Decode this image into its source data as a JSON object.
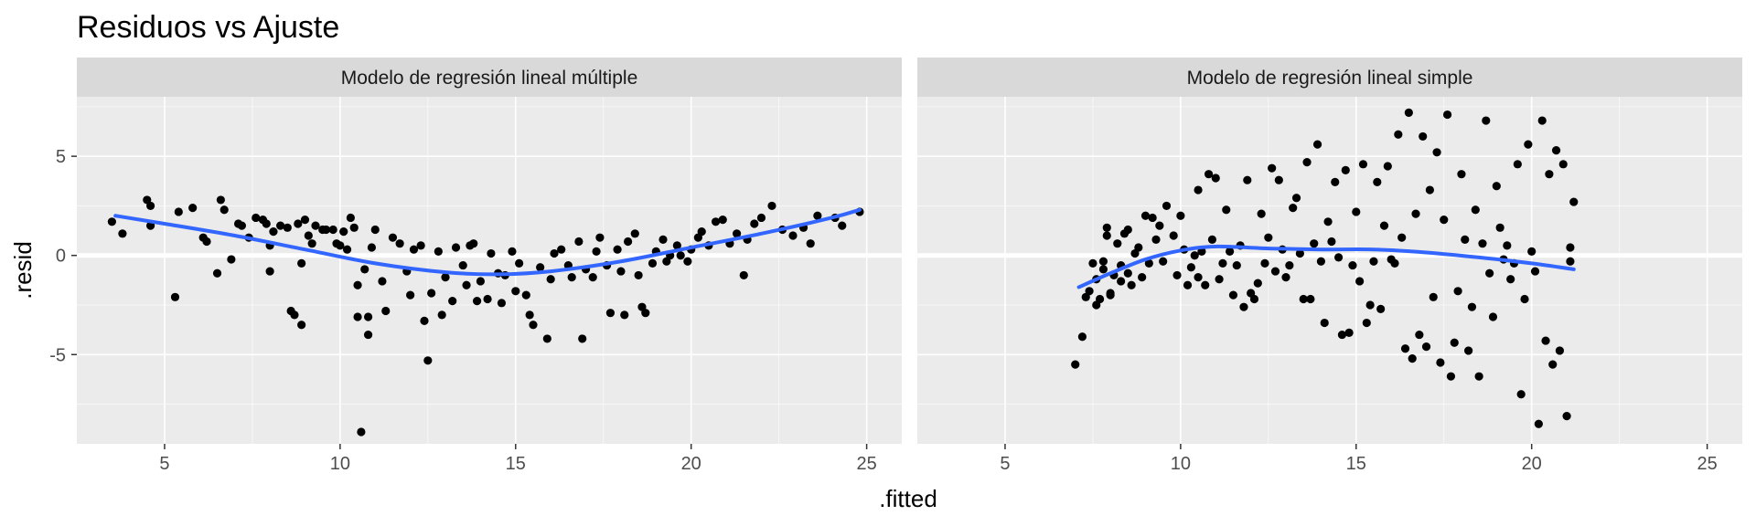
{
  "chart_data": {
    "type": "scatter",
    "title": "Residuos vs Ajuste",
    "xlabel": ".fitted",
    "ylabel": ".resid",
    "xlim": [
      2.5,
      26
    ],
    "ylim": [
      -9.5,
      8
    ],
    "xticks": [
      5,
      10,
      15,
      20,
      25
    ],
    "yticks": [
      5,
      0,
      -5
    ],
    "grid": true,
    "smooth_color": "#3366FF",
    "panels": [
      {
        "name": "Modelo de regresión lineal múltiple",
        "smooth": [
          [
            3.6,
            2.0
          ],
          [
            5,
            1.6
          ],
          [
            7,
            1.0
          ],
          [
            9,
            0.3
          ],
          [
            11,
            -0.4
          ],
          [
            13,
            -0.85
          ],
          [
            14.5,
            -0.95
          ],
          [
            16,
            -0.8
          ],
          [
            18,
            -0.3
          ],
          [
            20,
            0.4
          ],
          [
            22,
            1.1
          ],
          [
            24,
            1.9
          ],
          [
            24.8,
            2.3
          ]
        ],
        "points": [
          [
            3.5,
            1.7
          ],
          [
            3.8,
            1.1
          ],
          [
            4.5,
            2.8
          ],
          [
            4.6,
            2.5
          ],
          [
            4.6,
            1.5
          ],
          [
            5.3,
            -2.1
          ],
          [
            5.4,
            2.2
          ],
          [
            5.8,
            2.4
          ],
          [
            6.1,
            0.9
          ],
          [
            6.2,
            0.7
          ],
          [
            6.5,
            -0.9
          ],
          [
            6.6,
            2.8
          ],
          [
            6.7,
            2.3
          ],
          [
            6.9,
            -0.2
          ],
          [
            7.1,
            1.6
          ],
          [
            7.2,
            1.5
          ],
          [
            7.4,
            0.9
          ],
          [
            7.6,
            1.9
          ],
          [
            7.8,
            1.8
          ],
          [
            7.9,
            1.6
          ],
          [
            8.0,
            0.5
          ],
          [
            8.0,
            -0.8
          ],
          [
            8.1,
            1.2
          ],
          [
            8.3,
            1.5
          ],
          [
            8.5,
            1.4
          ],
          [
            8.6,
            -2.8
          ],
          [
            8.7,
            -3.0
          ],
          [
            8.8,
            1.6
          ],
          [
            8.9,
            -3.5
          ],
          [
            8.9,
            -0.4
          ],
          [
            9.0,
            1.8
          ],
          [
            9.1,
            1.0
          ],
          [
            9.2,
            0.6
          ],
          [
            9.3,
            1.5
          ],
          [
            9.5,
            1.3
          ],
          [
            9.6,
            1.3
          ],
          [
            9.8,
            1.3
          ],
          [
            9.9,
            0.6
          ],
          [
            10.0,
            0.5
          ],
          [
            10.1,
            1.2
          ],
          [
            10.2,
            0.3
          ],
          [
            10.3,
            1.9
          ],
          [
            10.4,
            1.4
          ],
          [
            10.5,
            -1.5
          ],
          [
            10.5,
            -3.1
          ],
          [
            10.6,
            -8.9
          ],
          [
            10.7,
            -0.7
          ],
          [
            10.8,
            -4.0
          ],
          [
            10.8,
            -3.1
          ],
          [
            10.9,
            0.4
          ],
          [
            11.0,
            1.3
          ],
          [
            11.2,
            -1.3
          ],
          [
            11.3,
            -2.8
          ],
          [
            11.5,
            0.9
          ],
          [
            11.7,
            0.6
          ],
          [
            11.9,
            -0.8
          ],
          [
            12.0,
            -2.0
          ],
          [
            12.1,
            0.3
          ],
          [
            12.3,
            0.5
          ],
          [
            12.4,
            -3.3
          ],
          [
            12.5,
            -5.3
          ],
          [
            12.6,
            -1.9
          ],
          [
            12.8,
            0.2
          ],
          [
            12.9,
            -3.0
          ],
          [
            13.0,
            -1.1
          ],
          [
            13.2,
            -2.3
          ],
          [
            13.3,
            0.4
          ],
          [
            13.5,
            -0.5
          ],
          [
            13.6,
            -1.5
          ],
          [
            13.7,
            0.5
          ],
          [
            13.8,
            0.6
          ],
          [
            13.9,
            -2.3
          ],
          [
            14.0,
            -1.3
          ],
          [
            14.2,
            -2.2
          ],
          [
            14.3,
            0.1
          ],
          [
            14.5,
            -0.9
          ],
          [
            14.6,
            -2.4
          ],
          [
            14.7,
            -1.0
          ],
          [
            14.9,
            0.2
          ],
          [
            15.0,
            -1.8
          ],
          [
            15.1,
            -0.4
          ],
          [
            15.3,
            -2.0
          ],
          [
            15.4,
            -3.0
          ],
          [
            15.5,
            -3.5
          ],
          [
            15.7,
            -0.6
          ],
          [
            15.9,
            -4.2
          ],
          [
            16.0,
            -1.2
          ],
          [
            16.1,
            0.1
          ],
          [
            16.3,
            0.3
          ],
          [
            16.5,
            -0.5
          ],
          [
            16.6,
            -1.1
          ],
          [
            16.8,
            0.7
          ],
          [
            16.9,
            -4.2
          ],
          [
            17.0,
            -0.7
          ],
          [
            17.2,
            -1.1
          ],
          [
            17.3,
            0.2
          ],
          [
            17.4,
            0.9
          ],
          [
            17.6,
            -0.5
          ],
          [
            17.7,
            -2.9
          ],
          [
            17.9,
            0.3
          ],
          [
            18.0,
            -0.8
          ],
          [
            18.1,
            -3.0
          ],
          [
            18.2,
            0.7
          ],
          [
            18.4,
            1.1
          ],
          [
            18.5,
            -1.0
          ],
          [
            18.6,
            -2.6
          ],
          [
            18.7,
            -2.9
          ],
          [
            18.9,
            -0.4
          ],
          [
            19.0,
            0.2
          ],
          [
            19.2,
            0.8
          ],
          [
            19.3,
            -0.3
          ],
          [
            19.4,
            0.0
          ],
          [
            19.6,
            0.5
          ],
          [
            19.7,
            0.0
          ],
          [
            19.9,
            -0.3
          ],
          [
            20.0,
            0.3
          ],
          [
            20.2,
            0.9
          ],
          [
            20.3,
            1.2
          ],
          [
            20.5,
            0.5
          ],
          [
            20.7,
            1.7
          ],
          [
            20.9,
            1.8
          ],
          [
            21.1,
            0.6
          ],
          [
            21.3,
            1.1
          ],
          [
            21.5,
            -1.0
          ],
          [
            21.6,
            0.8
          ],
          [
            21.8,
            1.6
          ],
          [
            22.0,
            1.9
          ],
          [
            22.3,
            2.5
          ],
          [
            22.6,
            1.3
          ],
          [
            22.9,
            1.0
          ],
          [
            23.2,
            1.4
          ],
          [
            23.4,
            0.6
          ],
          [
            23.6,
            2.0
          ],
          [
            24.1,
            1.9
          ],
          [
            24.3,
            1.5
          ],
          [
            24.8,
            2.2
          ]
        ]
      },
      {
        "name": "Modelo de regresión lineal simple",
        "smooth": [
          [
            7.1,
            -1.6
          ],
          [
            8,
            -0.9
          ],
          [
            9,
            -0.2
          ],
          [
            10,
            0.25
          ],
          [
            11,
            0.45
          ],
          [
            12.5,
            0.35
          ],
          [
            14,
            0.3
          ],
          [
            15.5,
            0.3
          ],
          [
            17,
            0.15
          ],
          [
            18.5,
            -0.1
          ],
          [
            20,
            -0.4
          ],
          [
            21.2,
            -0.7
          ]
        ],
        "points": [
          [
            7.0,
            -5.5
          ],
          [
            7.2,
            -4.1
          ],
          [
            7.3,
            -2.1
          ],
          [
            7.4,
            -1.8
          ],
          [
            7.5,
            -0.4
          ],
          [
            7.6,
            -2.5
          ],
          [
            7.6,
            -1.2
          ],
          [
            7.7,
            -2.2
          ],
          [
            7.8,
            -0.7
          ],
          [
            7.8,
            -0.3
          ],
          [
            7.9,
            1.0
          ],
          [
            7.9,
            1.4
          ],
          [
            8.0,
            -1.9
          ],
          [
            8.0,
            -2.0
          ],
          [
            8.1,
            -1.0
          ],
          [
            8.2,
            0.6
          ],
          [
            8.3,
            -1.3
          ],
          [
            8.3,
            -0.5
          ],
          [
            8.4,
            1.1
          ],
          [
            8.5,
            1.3
          ],
          [
            8.5,
            -0.9
          ],
          [
            8.6,
            -1.5
          ],
          [
            8.7,
            0.1
          ],
          [
            8.8,
            0.4
          ],
          [
            8.9,
            -1.1
          ],
          [
            9.0,
            2.0
          ],
          [
            9.1,
            -0.4
          ],
          [
            9.2,
            1.9
          ],
          [
            9.3,
            0.8
          ],
          [
            9.4,
            1.5
          ],
          [
            9.5,
            -0.3
          ],
          [
            9.6,
            2.5
          ],
          [
            9.8,
            1.0
          ],
          [
            9.9,
            -1.0
          ],
          [
            10.0,
            2.0
          ],
          [
            10.1,
            0.3
          ],
          [
            10.2,
            -1.5
          ],
          [
            10.3,
            -0.6
          ],
          [
            10.4,
            0.0
          ],
          [
            10.5,
            3.3
          ],
          [
            10.5,
            -1.1
          ],
          [
            10.6,
            0.2
          ],
          [
            10.7,
            -1.5
          ],
          [
            10.8,
            4.1
          ],
          [
            10.9,
            0.8
          ],
          [
            11.0,
            3.9
          ],
          [
            11.1,
            -1.2
          ],
          [
            11.2,
            -0.4
          ],
          [
            11.3,
            2.3
          ],
          [
            11.4,
            0.2
          ],
          [
            11.5,
            -2.0
          ],
          [
            11.6,
            -0.5
          ],
          [
            11.7,
            0.5
          ],
          [
            11.8,
            -2.6
          ],
          [
            11.9,
            3.8
          ],
          [
            12.0,
            -1.9
          ],
          [
            12.1,
            -2.2
          ],
          [
            12.2,
            -1.4
          ],
          [
            12.3,
            2.1
          ],
          [
            12.4,
            -0.4
          ],
          [
            12.5,
            0.9
          ],
          [
            12.6,
            4.4
          ],
          [
            12.7,
            -0.8
          ],
          [
            12.8,
            3.8
          ],
          [
            12.9,
            0.3
          ],
          [
            13.0,
            -1.1
          ],
          [
            13.1,
            -0.5
          ],
          [
            13.2,
            2.4
          ],
          [
            13.3,
            2.9
          ],
          [
            13.4,
            0.1
          ],
          [
            13.5,
            -2.2
          ],
          [
            13.6,
            4.7
          ],
          [
            13.7,
            -2.2
          ],
          [
            13.8,
            0.6
          ],
          [
            13.9,
            5.6
          ],
          [
            14.0,
            -0.3
          ],
          [
            14.1,
            -3.4
          ],
          [
            14.2,
            1.7
          ],
          [
            14.3,
            0.7
          ],
          [
            14.4,
            3.7
          ],
          [
            14.5,
            -0.1
          ],
          [
            14.6,
            -4.0
          ],
          [
            14.7,
            4.3
          ],
          [
            14.8,
            -3.9
          ],
          [
            14.9,
            -0.5
          ],
          [
            15.0,
            2.2
          ],
          [
            15.1,
            -1.3
          ],
          [
            15.2,
            4.6
          ],
          [
            15.3,
            -3.4
          ],
          [
            15.4,
            -2.5
          ],
          [
            15.5,
            -0.3
          ],
          [
            15.6,
            3.7
          ],
          [
            15.7,
            -2.7
          ],
          [
            15.8,
            1.5
          ],
          [
            15.9,
            4.5
          ],
          [
            16.0,
            -0.2
          ],
          [
            16.1,
            -0.4
          ],
          [
            16.2,
            6.1
          ],
          [
            16.3,
            0.9
          ],
          [
            16.4,
            -4.7
          ],
          [
            16.5,
            7.2
          ],
          [
            16.6,
            -5.2
          ],
          [
            16.7,
            2.1
          ],
          [
            16.8,
            -4.0
          ],
          [
            16.9,
            6.0
          ],
          [
            17.0,
            -4.6
          ],
          [
            17.1,
            3.3
          ],
          [
            17.2,
            -2.1
          ],
          [
            17.3,
            5.2
          ],
          [
            17.4,
            -5.4
          ],
          [
            17.5,
            1.8
          ],
          [
            17.6,
            7.1
          ],
          [
            17.7,
            -6.1
          ],
          [
            17.8,
            -4.4
          ],
          [
            17.9,
            -1.8
          ],
          [
            18.0,
            4.1
          ],
          [
            18.1,
            0.8
          ],
          [
            18.2,
            -4.8
          ],
          [
            18.3,
            -2.6
          ],
          [
            18.4,
            2.3
          ],
          [
            18.5,
            -6.1
          ],
          [
            18.6,
            0.6
          ],
          [
            18.7,
            6.8
          ],
          [
            18.8,
            -0.9
          ],
          [
            18.9,
            -3.1
          ],
          [
            19.0,
            3.5
          ],
          [
            19.1,
            1.4
          ],
          [
            19.2,
            -0.2
          ],
          [
            19.3,
            0.5
          ],
          [
            19.4,
            -1.2
          ],
          [
            19.5,
            -0.4
          ],
          [
            19.6,
            4.6
          ],
          [
            19.7,
            -7.0
          ],
          [
            19.8,
            -2.2
          ],
          [
            19.9,
            5.6
          ],
          [
            20.0,
            0.2
          ],
          [
            20.1,
            -0.8
          ],
          [
            20.2,
            -8.5
          ],
          [
            20.3,
            6.8
          ],
          [
            20.4,
            -4.3
          ],
          [
            20.5,
            4.1
          ],
          [
            20.6,
            -5.5
          ],
          [
            20.7,
            5.3
          ],
          [
            20.8,
            -4.8
          ],
          [
            20.9,
            4.6
          ],
          [
            21.0,
            -8.1
          ],
          [
            21.1,
            0.4
          ],
          [
            21.1,
            -0.3
          ],
          [
            21.2,
            2.7
          ]
        ]
      }
    ]
  }
}
